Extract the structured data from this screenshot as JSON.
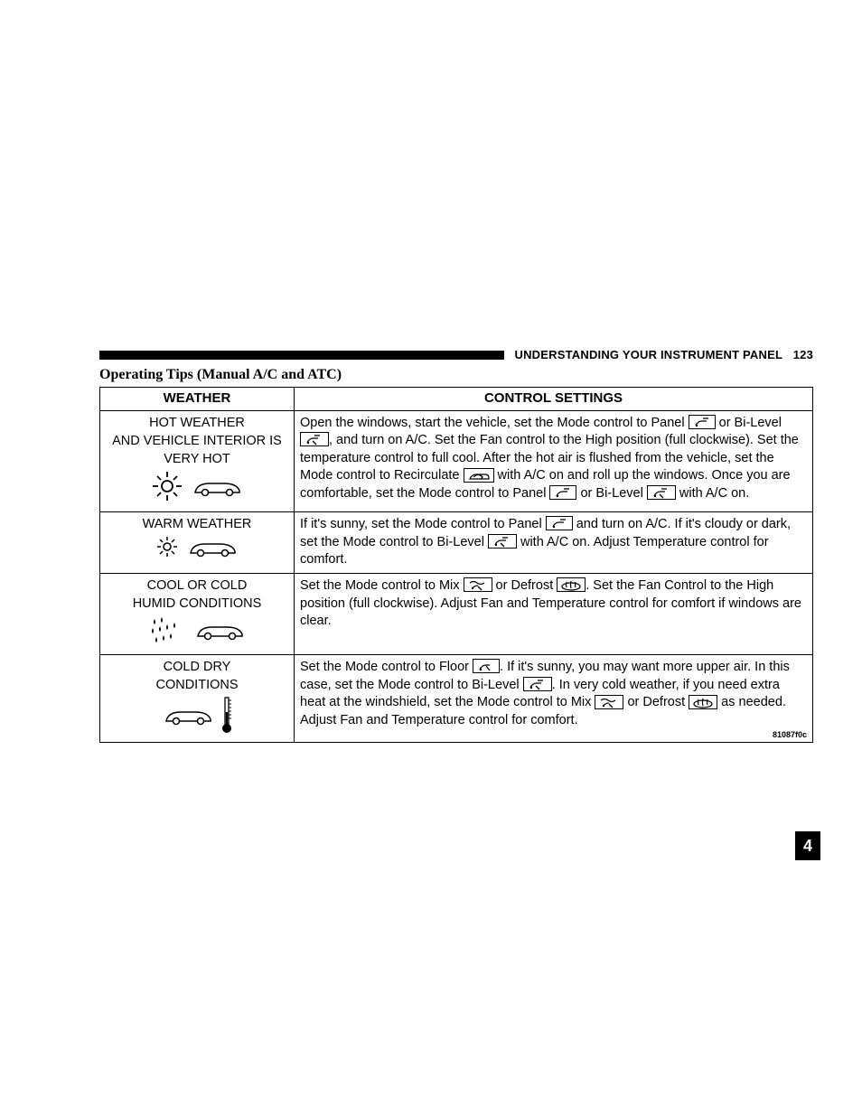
{
  "header": {
    "section": "UNDERSTANDING YOUR INSTRUMENT PANEL",
    "page_number": "123"
  },
  "section_title": "Operating Tips (Manual A/C and ATC)",
  "side_tab": "4",
  "figure_ref": "81087f0c",
  "table": {
    "headers": {
      "weather": "WEATHER",
      "settings": "CONTROL SETTINGS"
    },
    "rows": [
      {
        "weather_lines": [
          "HOT WEATHER",
          "AND VEHICLE INTERIOR IS",
          "VERY HOT"
        ],
        "weather_icons": [
          "sun-big",
          "car"
        ],
        "settings_segments": [
          {
            "t": "Open the windows, start the vehicle, set the Mode control to Panel "
          },
          {
            "icon": "panel"
          },
          {
            "t": " or Bi-Level "
          },
          {
            "icon": "bilevel"
          },
          {
            "t": ", and turn on A/C. Set the Fan control to the High position (full clockwise). Set the temperature control to full cool. After the hot air is flushed from the vehicle, set the Mode control to Recirculate "
          },
          {
            "icon": "recirc"
          },
          {
            "t": " with A/C on and roll up the windows. Once you are comfortable, set the Mode control to Panel "
          },
          {
            "icon": "panel"
          },
          {
            "t": " or Bi-Level "
          },
          {
            "icon": "bilevel"
          },
          {
            "t": " with A/C on."
          }
        ]
      },
      {
        "weather_lines": [
          "WARM WEATHER"
        ],
        "weather_icons": [
          "sun-small",
          "car"
        ],
        "settings_segments": [
          {
            "t": "If it's sunny, set the Mode control to Panel "
          },
          {
            "icon": "panel"
          },
          {
            "t": " and turn on A/C. If it's cloudy or dark, set the Mode control to Bi-Level "
          },
          {
            "icon": "bilevel"
          },
          {
            "t": " with A/C on. Adjust Temperature control for comfort."
          }
        ]
      },
      {
        "weather_lines": [
          "COOL OR COLD",
          "HUMID CONDITIONS"
        ],
        "weather_icons": [
          "droplets",
          "car"
        ],
        "settings_segments": [
          {
            "t": "Set the Mode control to Mix "
          },
          {
            "icon": "mix"
          },
          {
            "t": " or Defrost "
          },
          {
            "icon": "defrost"
          },
          {
            "t": ". Set the Fan Control to the High position (full clockwise). Adjust Fan and Temperature control for comfort if windows are clear."
          }
        ]
      },
      {
        "weather_lines": [
          "COLD DRY",
          "CONDITIONS"
        ],
        "weather_icons": [
          "car",
          "thermometer"
        ],
        "settings_segments": [
          {
            "t": "Set the Mode control to Floor "
          },
          {
            "icon": "floor"
          },
          {
            "t": ". If it's sunny, you may want more upper air. In this case, set the Mode control to Bi-Level "
          },
          {
            "icon": "bilevel"
          },
          {
            "t": ". In very cold weather, if you need extra heat at the windshield, set the Mode control to Mix "
          },
          {
            "icon": "mix"
          },
          {
            "t": " or Defrost "
          },
          {
            "icon": "defrost"
          },
          {
            "t": " as needed. Adjust Fan and Temperature control for comfort."
          }
        ]
      }
    ]
  },
  "icons": {
    "panel": "<svg width='22' height='14'><path d='M4 11 Q6 6 11 6 L16 6' stroke='#000' fill='none' stroke-width='1.3'/><path d='M12 3 L18 3' stroke='#000' stroke-width='1.3'/><circle cx='5' cy='11' r='1.2' fill='#000'/></svg>",
    "bilevel": "<svg width='24' height='14'><path d='M4 11 Q6 6 11 6 L16 6' stroke='#000' fill='none' stroke-width='1.3'/><path d='M12 3 L18 3' stroke='#000' stroke-width='1.3'/><path d='M10 9 L14 13' stroke='#000' stroke-width='1.3'/><circle cx='5' cy='11' r='1.2' fill='#000'/></svg>",
    "recirc": "<svg width='26' height='14'><path d='M3 11 Q5 6 10 6 L20 6 Q24 6 24 10 L24 11 L3 11 Z' stroke='#000' fill='none' stroke-width='1.2'/><path d='M7 9 Q12 4 17 9' stroke='#000' fill='none' stroke-width='1.2'/><path d='M15 7 L17 9 L15 11' stroke='#000' fill='none' stroke-width='1.2'/></svg>",
    "mix": "<svg width='24' height='14'><path d='M3 5 Q7 2 11 5 Q15 8 19 5' stroke='#000' fill='none' stroke-width='1.3'/><path d='M6 11 Q8 8 12 8' stroke='#000' fill='none' stroke-width='1.3'/><path d='M12 9 L16 13' stroke='#000' stroke-width='1.3'/><circle cx='6' cy='11' r='1.2' fill='#000'/></svg>",
    "defrost": "<svg width='24' height='14'><ellipse cx='12' cy='9' rx='10' ry='4' stroke='#000' fill='none' stroke-width='1.3'/><path d='M7 4 Q6 7 7 10 M12 3 Q11 7 12 11 M17 4 Q16 7 17 10' stroke='#000' fill='none' stroke-width='1.2'/></svg>",
    "floor": "<svg width='22' height='14'><path d='M4 11 Q6 6 11 6 L15 6' stroke='#000' fill='none' stroke-width='1.3'/><path d='M11 7 L15 12' stroke='#000' stroke-width='1.4'/><circle cx='5' cy='11' r='1.2' fill='#000'/></svg>",
    "sun-big": "<svg width='38' height='38'><circle cx='19' cy='19' r='6' stroke='#000' fill='none' stroke-width='1.8'/><g stroke='#000' stroke-width='1.8'><line x1='19' y1='3' x2='19' y2='9'/><line x1='19' y1='29' x2='19' y2='35'/><line x1='3' y1='19' x2='9' y2='19'/><line x1='29' y1='19' x2='35' y2='19'/><line x1='8' y1='8' x2='12' y2='12'/><line x1='26' y1='26' x2='30' y2='30'/><line x1='8' y1='30' x2='12' y2='26'/><line x1='26' y1='12' x2='30' y2='8'/></g></svg>",
    "sun-small": "<svg width='28' height='28'><circle cx='14' cy='14' r='4' stroke='#000' fill='none' stroke-width='1.5'/><g stroke='#000' stroke-width='1.5'><line x1='14' y1='3' x2='14' y2='7'/><line x1='14' y1='21' x2='14' y2='25'/><line x1='3' y1='14' x2='7' y2='14'/><line x1='21' y1='14' x2='25' y2='14'/><line x1='6' y1='6' x2='9' y2='9'/><line x1='19' y1='19' x2='22' y2='22'/><line x1='6' y1='22' x2='9' y2='19'/><line x1='19' y1='9' x2='22' y2='6'/></g></svg>",
    "car": "<svg width='60' height='26'><path d='M6 20 Q8 10 22 10 L38 10 Q52 10 55 18 L55 20 L6 20 Z' stroke='#000' fill='none' stroke-width='1.5'/><circle cx='17' cy='20' r='3.5' stroke='#000' fill='#fff' stroke-width='1.5'/><circle cx='44' cy='20' r='3.5' stroke='#000' fill='#fff' stroke-width='1.5'/></svg>",
    "droplets": "<svg width='44' height='36'><g fill='#000'><path d='M8 6 Q6 10 8 12 Q10 10 8 6'/><path d='M16 4 Q14 8 16 10 Q18 8 16 4'/><path d='M6 16 Q4 20 6 22 Q8 20 6 16'/><path d='M14 14 Q12 18 14 20 Q16 18 14 14'/><path d='M22 12 Q20 16 22 18 Q24 16 22 12'/><path d='M30 10 Q28 14 30 16 Q32 14 30 10'/><path d='M10 26 Q8 30 10 32 Q12 30 10 26'/><path d='M18 24 Q16 28 18 30 Q20 28 18 24'/><path d='M26 22 Q24 26 26 28 Q28 26 26 22'/></g></svg>",
    "thermometer": "<svg width='14' height='42'><rect x='5' y='2' width='4' height='30' stroke='#000' fill='#fff' stroke-width='1.3'/><circle cx='7' cy='36' r='5' fill='#000'/><rect x='5.8' y='18' width='2.4' height='16' fill='#000'/><g stroke='#000' stroke-width='1'><line x1='9' y1='5' x2='12' y2='5'/><line x1='9' y1='9' x2='12' y2='9'/><line x1='9' y1='13' x2='12' y2='13'/><line x1='9' y1='17' x2='12' y2='17'/><line x1='9' y1='21' x2='12' y2='21'/><line x1='9' y1='25' x2='12' y2='25'/></g></svg>"
  }
}
